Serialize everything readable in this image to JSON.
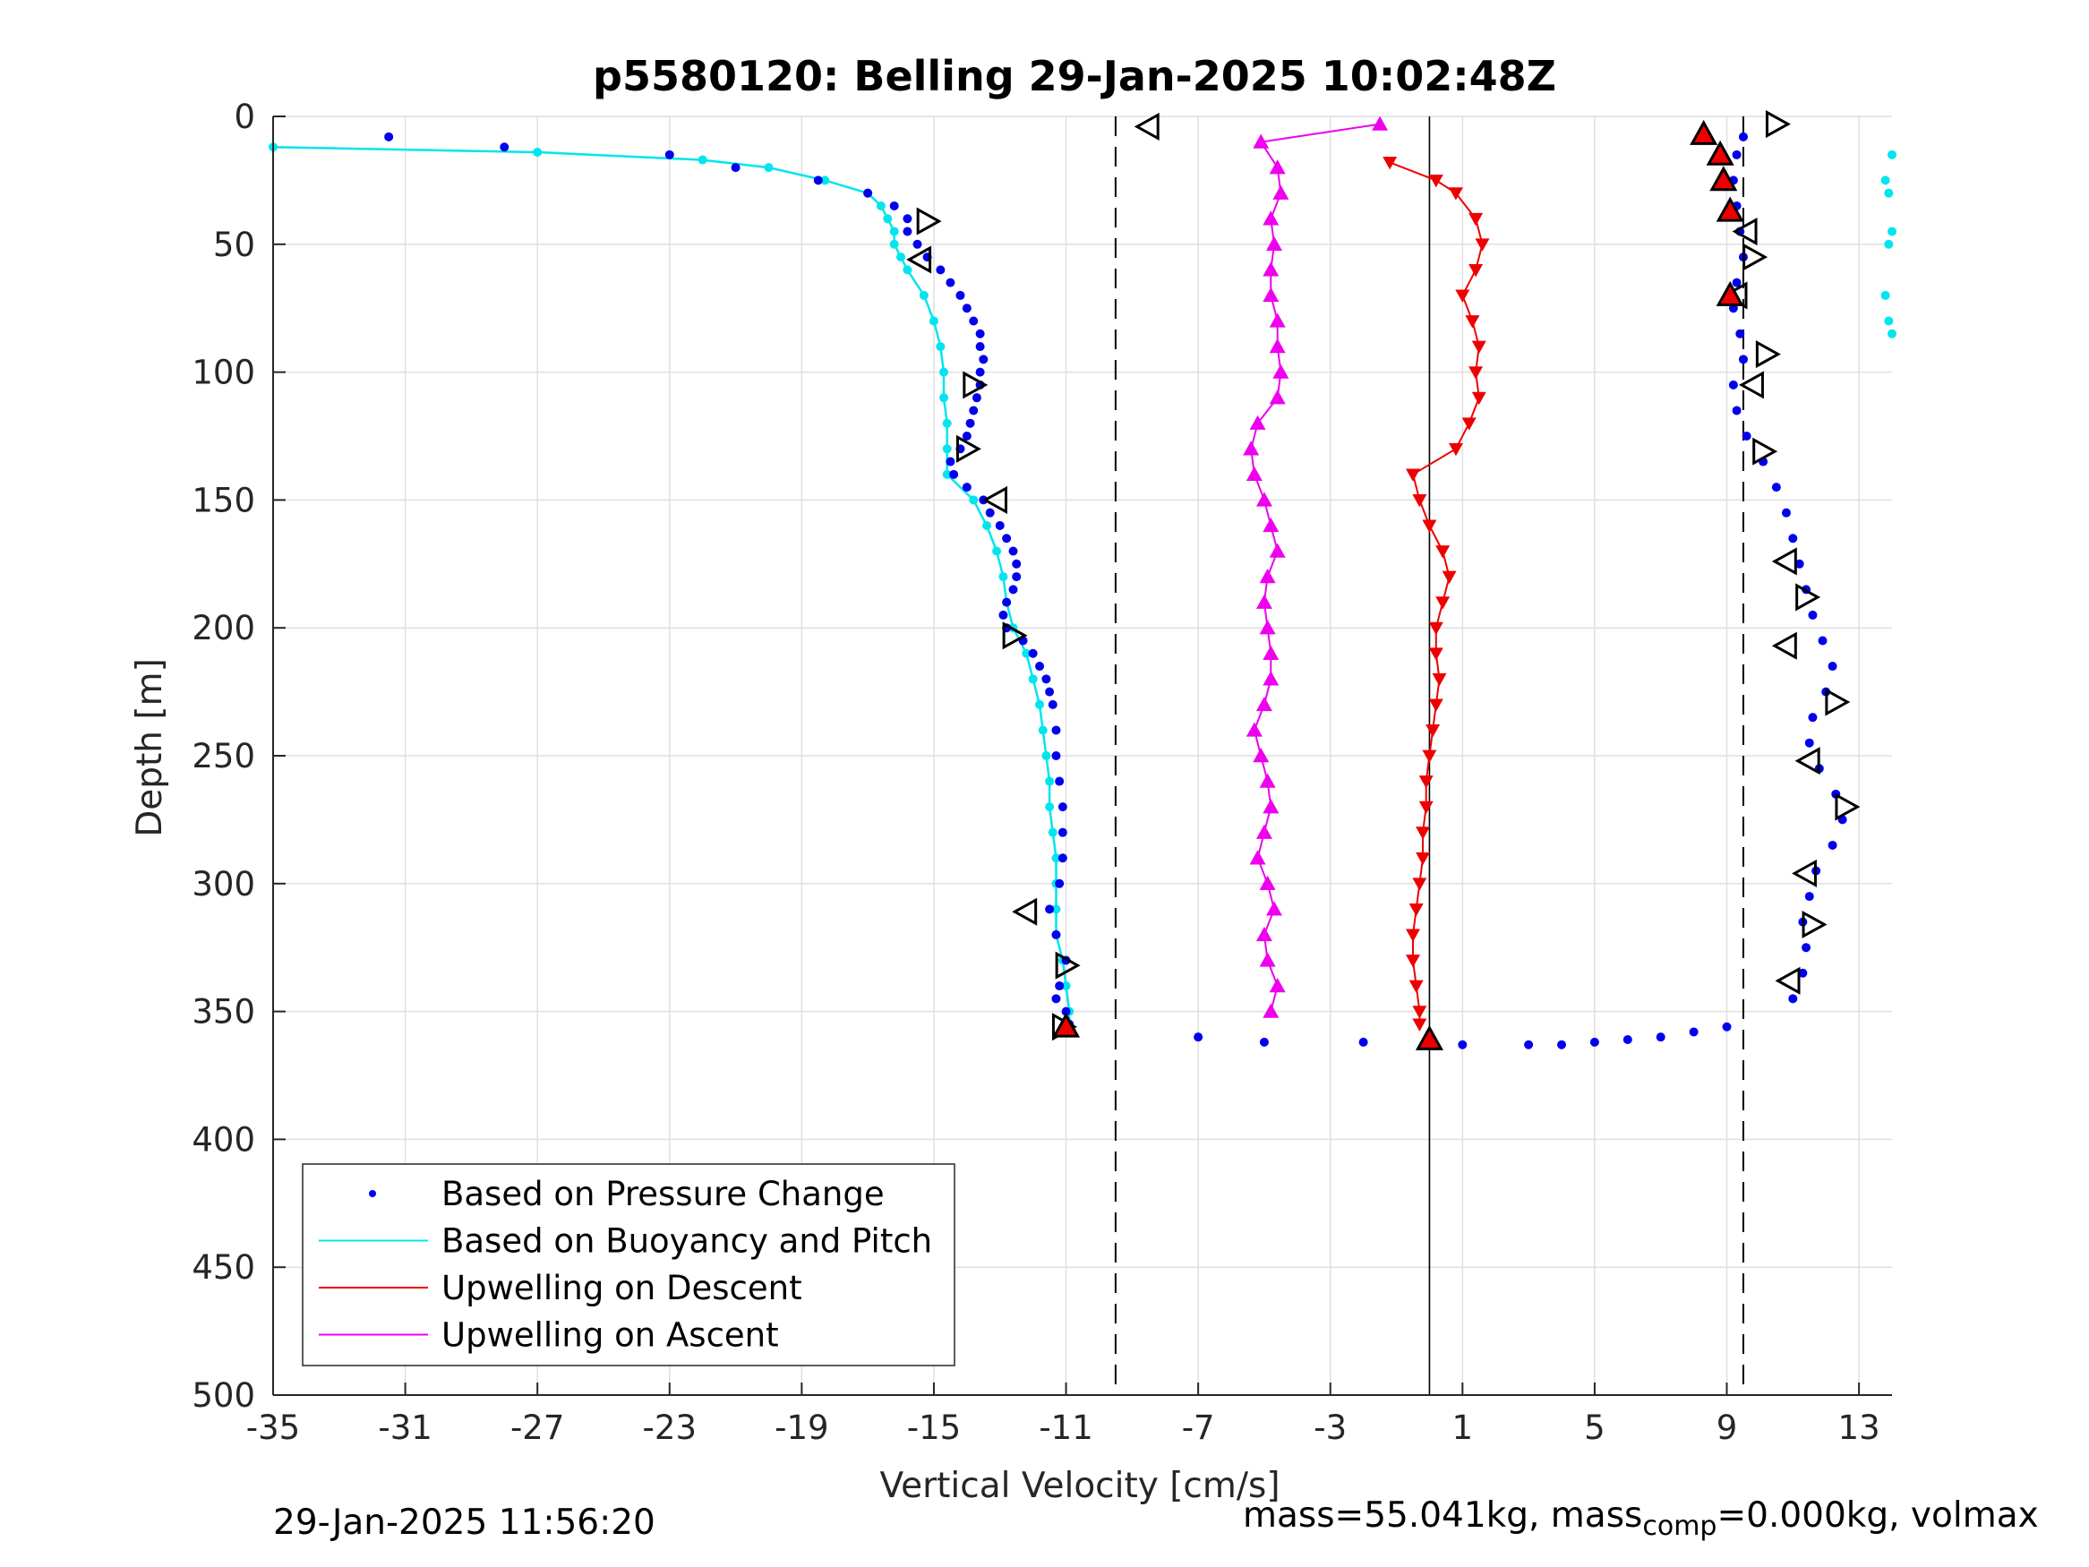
{
  "chart_data": {
    "type": "scatter",
    "title": "p5580120: Belling 29-Jan-2025 10:02:48Z",
    "xlabel": "Vertical Velocity [cm/s]",
    "ylabel": "Depth [m]",
    "xlim": [
      -35,
      14
    ],
    "ylim": [
      0,
      500
    ],
    "y_reversed": true,
    "xticks": [
      -35,
      -31,
      -27,
      -23,
      -19,
      -15,
      -11,
      -7,
      -3,
      1,
      5,
      9,
      13
    ],
    "yticks": [
      0,
      50,
      100,
      150,
      200,
      250,
      300,
      350,
      400,
      450,
      500
    ],
    "grid": true,
    "legend_position": "lower-left",
    "reference_lines": {
      "solid_x": 0,
      "dashed_x": [
        -9.5,
        9.5
      ]
    },
    "series": [
      {
        "name": "Based on Pressure Change",
        "style": "dots",
        "color": "#0000ee",
        "descent": {
          "depth": [
            8,
            12,
            15,
            20,
            25,
            30,
            35,
            40,
            45,
            50,
            55,
            60,
            65,
            70,
            75,
            80,
            85,
            90,
            95,
            100,
            105,
            110,
            115,
            120,
            125,
            130,
            135,
            140,
            145,
            150,
            155,
            160,
            165,
            170,
            175,
            180,
            185,
            190,
            195,
            200,
            205,
            210,
            215,
            220,
            225,
            230,
            240,
            250,
            260,
            270,
            280,
            290,
            300,
            310,
            320,
            330,
            340,
            345,
            350,
            355
          ],
          "velocity": [
            -31.5,
            -28,
            -23,
            -21,
            -18.5,
            -17,
            -16.2,
            -15.8,
            -15.8,
            -15.5,
            -15.2,
            -14.8,
            -14.5,
            -14.2,
            -14.0,
            -13.8,
            -13.6,
            -13.6,
            -13.5,
            -13.6,
            -13.6,
            -13.7,
            -13.8,
            -13.9,
            -14.0,
            -14.2,
            -14.5,
            -14.4,
            -14.0,
            -13.5,
            -13.3,
            -13.0,
            -12.8,
            -12.6,
            -12.5,
            -12.5,
            -12.6,
            -12.8,
            -12.9,
            -12.8,
            -12.3,
            -12.0,
            -11.8,
            -11.6,
            -11.5,
            -11.4,
            -11.3,
            -11.3,
            -11.2,
            -11.1,
            -11.1,
            -11.1,
            -11.2,
            -11.5,
            -11.3,
            -11.0,
            -11.2,
            -11.3,
            -11.0,
            -10.9
          ]
        },
        "ascent": {
          "depth": [
            345,
            335,
            325,
            315,
            305,
            295,
            285,
            275,
            265,
            255,
            245,
            235,
            225,
            215,
            205,
            195,
            185,
            175,
            165,
            155,
            145,
            135,
            125,
            115,
            105,
            95,
            85,
            75,
            65,
            55,
            45,
            35,
            25,
            15,
            8
          ],
          "velocity": [
            11.0,
            11.3,
            11.4,
            11.3,
            11.5,
            11.7,
            12.2,
            12.5,
            12.3,
            11.8,
            11.5,
            11.6,
            12.0,
            12.2,
            11.9,
            11.6,
            11.4,
            11.2,
            11.0,
            10.8,
            10.5,
            10.1,
            9.6,
            9.3,
            9.2,
            9.5,
            9.4,
            9.2,
            9.3,
            9.5,
            9.4,
            9.3,
            9.2,
            9.3,
            9.5
          ]
        },
        "bottom_turn": {
          "depth": [
            360,
            362,
            362,
            363,
            363,
            363,
            362,
            361,
            360,
            358,
            356
          ],
          "velocity": [
            -7,
            -5,
            -2,
            1,
            3,
            4,
            5,
            6,
            7,
            8,
            9
          ]
        }
      },
      {
        "name": "Based on Buoyancy and Pitch",
        "style": "line",
        "color": "#00e5ee",
        "descent": {
          "depth": [
            12,
            14,
            17,
            20,
            25,
            30,
            35,
            40,
            45,
            50,
            55,
            60,
            70,
            80,
            90,
            100,
            110,
            120,
            130,
            140,
            150,
            160,
            170,
            180,
            190,
            200,
            210,
            220,
            230,
            240,
            250,
            260,
            270,
            280,
            290,
            300,
            310,
            320,
            330,
            340,
            350,
            355
          ],
          "velocity": [
            -35,
            -27,
            -22,
            -20,
            -18.3,
            -17,
            -16.6,
            -16.4,
            -16.2,
            -16.2,
            -16.0,
            -15.8,
            -15.3,
            -15.0,
            -14.8,
            -14.7,
            -14.7,
            -14.6,
            -14.6,
            -14.6,
            -13.8,
            -13.4,
            -13.1,
            -12.9,
            -12.8,
            -12.6,
            -12.2,
            -12.0,
            -11.8,
            -11.7,
            -11.6,
            -11.5,
            -11.5,
            -11.4,
            -11.3,
            -11.3,
            -11.3,
            -11.3,
            -11.1,
            -11.0,
            -10.9,
            -10.9
          ]
        },
        "ascent_near_surface": {
          "depth": [
            15,
            25,
            30,
            45,
            50,
            70,
            80,
            85
          ],
          "velocity": [
            14,
            13.8,
            13.9,
            14,
            13.9,
            13.8,
            13.9,
            14
          ]
        }
      },
      {
        "name": "Upwelling on Descent",
        "style": "down-triangles",
        "color": "#ee0000",
        "data": {
          "depth": [
            18,
            25,
            30,
            40,
            50,
            60,
            70,
            80,
            90,
            100,
            110,
            120,
            130,
            140,
            150,
            160,
            170,
            180,
            190,
            200,
            210,
            220,
            230,
            240,
            250,
            260,
            270,
            280,
            290,
            300,
            310,
            320,
            330,
            340,
            350,
            355
          ],
          "velocity": [
            -1.2,
            0.2,
            0.8,
            1.4,
            1.6,
            1.4,
            1.0,
            1.3,
            1.5,
            1.4,
            1.5,
            1.2,
            0.8,
            -0.5,
            -0.3,
            0.0,
            0.4,
            0.6,
            0.4,
            0.2,
            0.2,
            0.3,
            0.2,
            0.1,
            0.0,
            -0.1,
            -0.1,
            -0.2,
            -0.2,
            -0.3,
            -0.4,
            -0.5,
            -0.5,
            -0.4,
            -0.3,
            -0.3
          ]
        }
      },
      {
        "name": "Upwelling on Ascent",
        "style": "up-triangles",
        "color": "#ee00ee",
        "data": {
          "depth": [
            350,
            340,
            330,
            320,
            310,
            300,
            290,
            280,
            270,
            260,
            250,
            240,
            230,
            220,
            210,
            200,
            190,
            180,
            170,
            160,
            150,
            140,
            130,
            120,
            110,
            100,
            90,
            80,
            70,
            60,
            50,
            40,
            30,
            20,
            10,
            3
          ],
          "velocity": [
            -4.8,
            -4.6,
            -4.9,
            -5.0,
            -4.7,
            -4.9,
            -5.2,
            -5.0,
            -4.8,
            -4.9,
            -5.1,
            -5.3,
            -5.0,
            -4.8,
            -4.8,
            -4.9,
            -5.0,
            -4.9,
            -4.6,
            -4.8,
            -5.0,
            -5.3,
            -5.4,
            -5.2,
            -4.6,
            -4.5,
            -4.6,
            -4.6,
            -4.8,
            -4.8,
            -4.7,
            -4.8,
            -4.5,
            -4.6,
            -5.1,
            -1.5
          ]
        }
      }
    ],
    "black_open_triangles": {
      "descent": {
        "depth": [
          4,
          41,
          56,
          105,
          130,
          150,
          203,
          311,
          332,
          356
        ],
        "velocity": [
          -8.5,
          -15.2,
          -15.4,
          -13.8,
          -14.0,
          -13.1,
          -12.6,
          -12.2,
          -11.0,
          -11.1
        ],
        "direction": [
          "left",
          "right",
          "left",
          "right",
          "right",
          "left",
          "right",
          "left",
          "right",
          "right"
        ]
      },
      "ascent": {
        "depth": [
          3,
          45,
          55,
          70,
          93,
          105,
          131,
          174,
          188,
          207,
          229,
          252,
          270,
          296,
          316,
          338
        ],
        "velocity": [
          10.5,
          9.6,
          9.8,
          9.3,
          10.2,
          9.8,
          10.1,
          10.8,
          11.4,
          10.8,
          12.3,
          11.5,
          12.6,
          11.4,
          11.6,
          10.9
        ],
        "direction": [
          "right",
          "left",
          "right",
          "left",
          "right",
          "left",
          "right",
          "left",
          "right",
          "left",
          "right",
          "left",
          "right",
          "left",
          "right",
          "left"
        ]
      }
    },
    "red_filled_triangles": {
      "depth": [
        7,
        15,
        25,
        37,
        70,
        356,
        361
      ],
      "velocity": [
        8.3,
        8.8,
        8.9,
        9.1,
        9.1,
        -11.0,
        0.0
      ]
    }
  },
  "footer": {
    "timestamp": "29-Jan-2025 11:56:20",
    "mass_prefix": "mass=55.041kg, mass",
    "mass_sub": "comp",
    "mass_suffix": "=0.000kg, volmax"
  }
}
